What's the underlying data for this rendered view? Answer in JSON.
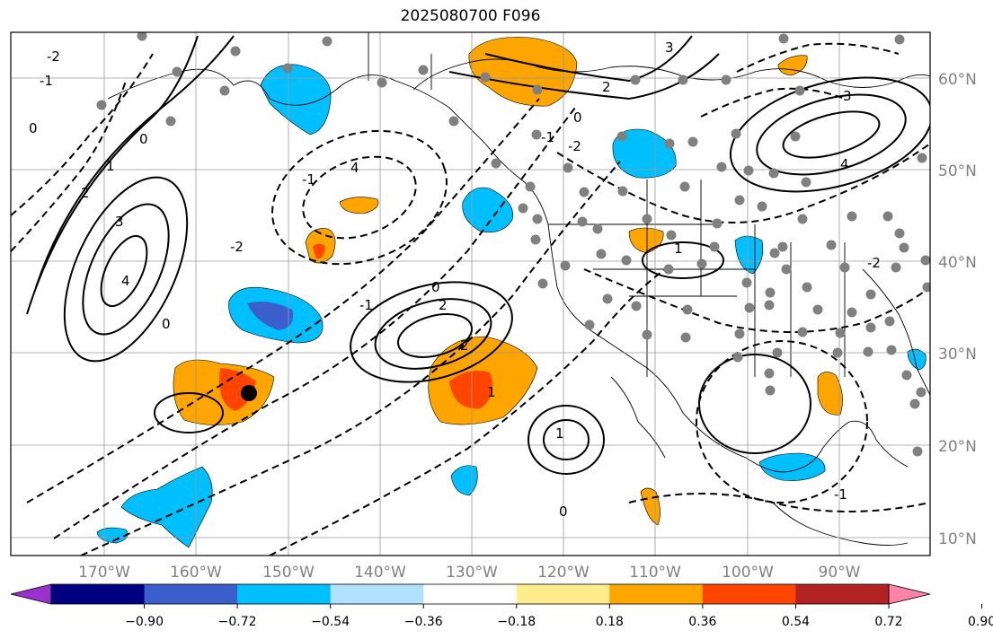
{
  "title": "2025080700 F096",
  "map": {
    "lon_labels": [
      "170°W",
      "160°W",
      "150°W",
      "140°W",
      "130°W",
      "120°W",
      "110°W",
      "100°W",
      "90°W"
    ],
    "lat_labels": [
      "60°N",
      "50°N",
      "40°N",
      "30°N",
      "20°N",
      "10°N"
    ],
    "contour_labels": [
      "-2",
      "-1",
      "0",
      "0",
      "1",
      "2",
      "3",
      "4",
      "4",
      "-1",
      "0",
      "2",
      "-1",
      "-2",
      "0",
      "1",
      "2",
      "3",
      "-2",
      "-1",
      "0",
      "1",
      "2",
      "3",
      "4",
      "1",
      "-1",
      "0",
      "-2"
    ],
    "stations_color": "#808080",
    "marker": "black-dot"
  },
  "colorbar": {
    "colors": [
      "#9932cc",
      "#000080",
      "#3a5fcd",
      "#00bfff",
      "#b0e2ff",
      "#ffffff",
      "#ffec8b",
      "#ffa500",
      "#ff4500",
      "#b22222",
      "#ff82ab"
    ],
    "ticks": [
      "−0.90",
      "−0.72",
      "−0.54",
      "−0.36",
      "−0.18",
      "0.18",
      "0.36",
      "0.54",
      "0.72",
      "0.90"
    ]
  }
}
